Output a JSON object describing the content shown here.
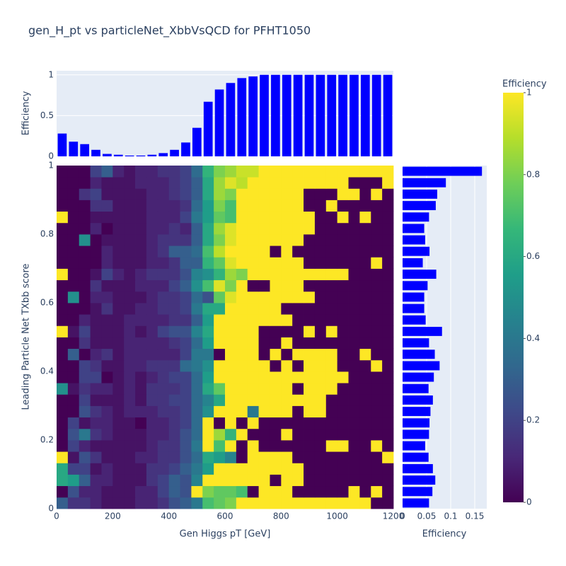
{
  "chart_data": [
    {
      "type": "heatmap",
      "title": "gen_H_pt vs particleNet_XbbVsQCD for PFHT1050",
      "xlabel": "Gen Higgs pT [GeV]",
      "ylabel": "Leading Particle Net TXbb score",
      "xbins": [
        0,
        40,
        80,
        120,
        160,
        200,
        240,
        280,
        320,
        360,
        400,
        440,
        480,
        520,
        560,
        600,
        640,
        680,
        720,
        760,
        800,
        840,
        880,
        920,
        960,
        1000,
        1040,
        1080,
        1120,
        1160,
        1200
      ],
      "ybins": [
        0,
        0.0333,
        0.0667,
        0.1,
        0.1333,
        0.1667,
        0.2,
        0.2333,
        0.2667,
        0.3,
        0.3333,
        0.3667,
        0.4,
        0.4333,
        0.4667,
        0.5,
        0.5333,
        0.5667,
        0.6,
        0.6333,
        0.6667,
        0.7,
        0.7333,
        0.7667,
        0.8,
        0.8333,
        0.8667,
        0.9,
        0.9333,
        0.9667,
        1
      ],
      "xlim": [
        0,
        1200
      ],
      "ylim": [
        0,
        1
      ],
      "xticks": [
        0,
        200,
        400,
        600,
        800,
        1000,
        1200
      ],
      "yticks": [
        0,
        0.2,
        0.4,
        0.6,
        0.8,
        1
      ],
      "colorscale": "viridis",
      "colorbar": {
        "title": "Efficiency",
        "lim": [
          0,
          1
        ],
        "ticks": [
          0,
          0.2,
          0.4,
          0.6,
          0.8,
          1
        ]
      },
      "z": [
        [
          0.3,
          0.15,
          0.15,
          0.1,
          0.05,
          0.05,
          0.05,
          0.1,
          0.1,
          0.15,
          0.25,
          0.3,
          0.4,
          0.7,
          0.75,
          0.8,
          1,
          1,
          1,
          1,
          1,
          1,
          1,
          1,
          1,
          1,
          1,
          1,
          0,
          0
        ],
        [
          0,
          0.25,
          0.1,
          0.1,
          0.05,
          0.05,
          0.05,
          0.1,
          0.1,
          0.2,
          0.3,
          0.25,
          1,
          0.8,
          0.75,
          0.75,
          0.7,
          0,
          1,
          1,
          1,
          0,
          0,
          0,
          0,
          0,
          1,
          0,
          1,
          0
        ],
        [
          0.6,
          0.55,
          0.3,
          0.1,
          0.1,
          0.05,
          0.05,
          0.05,
          0.15,
          0.2,
          0.3,
          0.25,
          0.45,
          1,
          1,
          1,
          1,
          1,
          1,
          0,
          1,
          1,
          0,
          0,
          0,
          0,
          0,
          0,
          0,
          0
        ],
        [
          0.6,
          0.2,
          0.2,
          0.05,
          0.1,
          0.05,
          0.05,
          0.05,
          0.15,
          0.15,
          0.2,
          0.3,
          0.4,
          0.55,
          1,
          1,
          1,
          1,
          1,
          1,
          1,
          1,
          0,
          0,
          0,
          0,
          0,
          0,
          0,
          0
        ],
        [
          1,
          0.05,
          0.25,
          0.15,
          0.05,
          0.05,
          0.05,
          0.1,
          0.1,
          0.15,
          0.15,
          0.25,
          0.35,
          0.6,
          0.55,
          0.45,
          0,
          1,
          1,
          1,
          1,
          0,
          0,
          0,
          0,
          0,
          0,
          0,
          0,
          1
        ],
        [
          0,
          0.2,
          0.1,
          0.05,
          0.05,
          0.05,
          0.05,
          0.05,
          0.1,
          0.15,
          0.15,
          0.25,
          0.4,
          1,
          0.7,
          1,
          0,
          1,
          0,
          0,
          0,
          0,
          0,
          0,
          1,
          1,
          0,
          0,
          1,
          0
        ],
        [
          0,
          0.25,
          0.4,
          0.15,
          0.1,
          0.05,
          0.05,
          0.05,
          0.1,
          0.1,
          0.15,
          0.25,
          0.35,
          1,
          0.85,
          0.65,
          1,
          0,
          0,
          0,
          1,
          0,
          0,
          0,
          0,
          0,
          0,
          0,
          0,
          0
        ],
        [
          0,
          0.2,
          0.05,
          0.1,
          0.1,
          0.05,
          0.05,
          0,
          0.1,
          0.1,
          0.15,
          0.2,
          0.35,
          1,
          0,
          1,
          0,
          1,
          0,
          0,
          0,
          0,
          0,
          0,
          0,
          0,
          0,
          0,
          0,
          0
        ],
        [
          0,
          0,
          0.25,
          0.15,
          0.1,
          0.05,
          0.1,
          0.1,
          0.1,
          0.15,
          0.15,
          0.2,
          0.35,
          0.5,
          1,
          1,
          1,
          0.4,
          1,
          1,
          1,
          0,
          1,
          1,
          0,
          0,
          0,
          0,
          0,
          0
        ],
        [
          0,
          0,
          0.2,
          0.05,
          0.05,
          0.05,
          0.1,
          0.05,
          0.15,
          0.15,
          0.2,
          0.2,
          0.35,
          0.45,
          0.6,
          1,
          1,
          1,
          1,
          1,
          1,
          1,
          1,
          1,
          0,
          0,
          0,
          0,
          0,
          0
        ],
        [
          0.5,
          0.05,
          0.15,
          0.1,
          0.1,
          0.05,
          0.1,
          0.05,
          0.15,
          0.15,
          0.15,
          0.2,
          0.35,
          0.6,
          0.75,
          1,
          1,
          1,
          1,
          1,
          1,
          0,
          1,
          1,
          1,
          0,
          0,
          0,
          0,
          0
        ],
        [
          0,
          0,
          0.2,
          0.2,
          0,
          0.05,
          0.1,
          0.05,
          0.1,
          0.15,
          0.2,
          0.2,
          0.35,
          0.55,
          1,
          1,
          1,
          1,
          1,
          1,
          1,
          1,
          1,
          1,
          1,
          1,
          0,
          0,
          0,
          0
        ],
        [
          0,
          0,
          0.2,
          0.15,
          0.05,
          0.05,
          0.1,
          0.1,
          0.15,
          0.15,
          0.15,
          0.35,
          0.4,
          0.5,
          1,
          1,
          1,
          1,
          1,
          0,
          1,
          0,
          1,
          1,
          1,
          0,
          0,
          0,
          1,
          0
        ],
        [
          0,
          0.3,
          0,
          0.1,
          0.15,
          0.05,
          0.1,
          0.1,
          0.1,
          0.1,
          0.1,
          0.2,
          0.4,
          0.4,
          0,
          1,
          1,
          1,
          0,
          1,
          0,
          1,
          1,
          1,
          1,
          0,
          0,
          1,
          0,
          0
        ],
        [
          0,
          0,
          0.15,
          0.05,
          0.05,
          0.05,
          0.1,
          0.1,
          0.1,
          0.1,
          0.15,
          0.2,
          0.35,
          0.55,
          1,
          1,
          1,
          1,
          0,
          0,
          1,
          0,
          0,
          0,
          0,
          0,
          0,
          0,
          0,
          0
        ],
        [
          1,
          0.05,
          0.2,
          0.05,
          0.05,
          0.05,
          0.1,
          0.05,
          0.1,
          0.2,
          0.25,
          0.25,
          0.45,
          0.6,
          1,
          1,
          1,
          1,
          0,
          0,
          0,
          0,
          1,
          0,
          1,
          0,
          0,
          0,
          0,
          0
        ],
        [
          0,
          0,
          0.1,
          0.05,
          0.05,
          0.05,
          0.1,
          0.1,
          0.1,
          0.1,
          0.15,
          0.15,
          0.3,
          0.55,
          1,
          1,
          1,
          1,
          1,
          1,
          1,
          0,
          0,
          0,
          0,
          0,
          0,
          0,
          0,
          0
        ],
        [
          0,
          0,
          0,
          0.05,
          0.15,
          0.05,
          0.05,
          0.1,
          0.1,
          0.15,
          0.15,
          0.2,
          0.4,
          0.6,
          0.6,
          1,
          1,
          1,
          1,
          1,
          0,
          0,
          0,
          0,
          0,
          0,
          0,
          0,
          0,
          0
        ],
        [
          0,
          0.5,
          0,
          0.1,
          0.1,
          0.05,
          0.05,
          0.05,
          0.1,
          0.15,
          0.15,
          0.2,
          0.35,
          0.25,
          0.75,
          0.95,
          1,
          1,
          1,
          1,
          1,
          1,
          1,
          0,
          0,
          0,
          0,
          0,
          0,
          0
        ],
        [
          0,
          0,
          0,
          0.15,
          0.05,
          0.05,
          0.05,
          0.1,
          0.1,
          0.1,
          0.2,
          0.3,
          0.5,
          0.7,
          0.95,
          0.8,
          1,
          0,
          0,
          1,
          1,
          1,
          0,
          0,
          0,
          0,
          0,
          0,
          0,
          0
        ],
        [
          1,
          0,
          0,
          0.05,
          0.2,
          0.1,
          0.05,
          0.1,
          0.15,
          0.15,
          0.15,
          0.25,
          0.45,
          0.5,
          0.65,
          0.85,
          0.8,
          1,
          1,
          1,
          1,
          1,
          1,
          1,
          1,
          1,
          0,
          0,
          0,
          0
        ],
        [
          0,
          0,
          0,
          0,
          0.1,
          0.05,
          0.05,
          0.05,
          0.1,
          0.1,
          0.15,
          0.3,
          0.3,
          0.65,
          0.75,
          0.95,
          1,
          1,
          1,
          1,
          1,
          1,
          0,
          0,
          0,
          0,
          0,
          0,
          1,
          0
        ],
        [
          0,
          0,
          0,
          0,
          0.1,
          0.05,
          0.05,
          0.05,
          0.1,
          0.15,
          0.3,
          0.3,
          0.35,
          0.7,
          0.9,
          1,
          1,
          1,
          1,
          0,
          1,
          0,
          0,
          0,
          0,
          0,
          0,
          0,
          0,
          0
        ],
        [
          0,
          0,
          0.5,
          0,
          0.05,
          0.05,
          0.05,
          0.05,
          0.1,
          0.15,
          0.15,
          0.15,
          0.3,
          0.6,
          0.8,
          0.95,
          1,
          1,
          1,
          1,
          1,
          1,
          0,
          0,
          0,
          0,
          0,
          0,
          0,
          0
        ],
        [
          0,
          0,
          0,
          0.1,
          0,
          0.05,
          0.05,
          0.05,
          0.1,
          0.1,
          0.15,
          0.1,
          0.3,
          0.6,
          0.85,
          0.95,
          1,
          1,
          1,
          1,
          1,
          1,
          1,
          0,
          0,
          0,
          0,
          0,
          0,
          0
        ],
        [
          1,
          0,
          0,
          0.05,
          0.05,
          0.05,
          0.05,
          0.05,
          0.1,
          0.1,
          0.1,
          0.2,
          0.4,
          0.55,
          0.75,
          0.7,
          1,
          1,
          1,
          1,
          1,
          1,
          1,
          0,
          0,
          1,
          0,
          1,
          0,
          0
        ],
        [
          0,
          0,
          0,
          0.15,
          0.15,
          0.05,
          0.05,
          0.05,
          0.1,
          0.1,
          0.1,
          0.15,
          0.35,
          0.55,
          0.8,
          0.7,
          1,
          1,
          1,
          1,
          1,
          1,
          0,
          0,
          1,
          0,
          0,
          0,
          0,
          0
        ],
        [
          0,
          0,
          0.15,
          0.2,
          0.05,
          0.05,
          0.05,
          0.05,
          0.1,
          0.1,
          0.15,
          0.2,
          0.3,
          0.6,
          0.85,
          0.8,
          1,
          1,
          1,
          1,
          1,
          1,
          0,
          0,
          0,
          1,
          1,
          0,
          1,
          0
        ],
        [
          0,
          0,
          0,
          0.1,
          0.05,
          0.05,
          0.05,
          0.1,
          0.1,
          0.1,
          0.15,
          0.2,
          0.3,
          0.6,
          0.85,
          0.95,
          0.9,
          1,
          1,
          1,
          1,
          1,
          1,
          1,
          1,
          1,
          0,
          0,
          0,
          1
        ],
        [
          0,
          0,
          0,
          0.2,
          0.3,
          0.1,
          0.05,
          0.1,
          0.1,
          0.15,
          0.15,
          0.2,
          0.35,
          0.65,
          0.8,
          0.85,
          0.92,
          0.92,
          1,
          1,
          1,
          1,
          1,
          1,
          1,
          1,
          1,
          1,
          1,
          1
        ]
      ]
    },
    {
      "type": "bar",
      "ylabel": "Efficiency",
      "color": "#0000ff",
      "ylim": [
        0,
        1.05
      ],
      "yticks": [
        0,
        0.5,
        1
      ],
      "grid": true,
      "values": [
        0.28,
        0.18,
        0.15,
        0.08,
        0.03,
        0.02,
        0.01,
        0.01,
        0.02,
        0.04,
        0.08,
        0.17,
        0.35,
        0.67,
        0.82,
        0.9,
        0.96,
        0.98,
        1,
        1,
        1,
        1,
        1,
        1,
        1,
        1,
        1,
        1,
        1,
        1
      ]
    },
    {
      "type": "barh",
      "xlabel": "Efficiency",
      "color": "#0000ff",
      "xlim": [
        0,
        0.175
      ],
      "xticks": [
        0,
        0.05,
        0.1,
        0.15
      ],
      "grid": true,
      "values": [
        0.055,
        0.062,
        0.068,
        0.063,
        0.054,
        0.047,
        0.055,
        0.056,
        0.058,
        0.063,
        0.054,
        0.065,
        0.077,
        0.067,
        0.055,
        0.082,
        0.048,
        0.045,
        0.045,
        0.052,
        0.07,
        0.042,
        0.056,
        0.047,
        0.045,
        0.055,
        0.069,
        0.072,
        0.09,
        0.165
      ]
    }
  ]
}
